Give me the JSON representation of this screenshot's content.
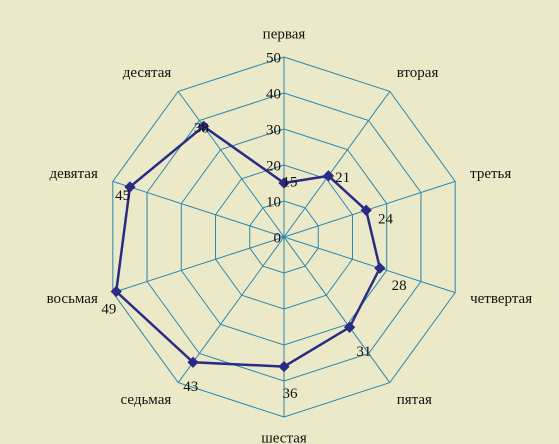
{
  "chart_data": {
    "type": "radar",
    "categories": [
      "первая",
      "вторая",
      "третья",
      "четвертая",
      "пятая",
      "шестая",
      "седьмая",
      "восьмая",
      "девятая",
      "десятая"
    ],
    "series": [
      {
        "name": null,
        "color": "#2b2b85",
        "values": [
          15,
          21,
          24,
          28,
          31,
          36,
          43,
          49,
          45,
          38
        ]
      }
    ],
    "ylim": [
      0,
      50
    ],
    "yticks": [
      0,
      10,
      20,
      30,
      40,
      50
    ],
    "grid": true,
    "grid_color": "#2a86b0"
  }
}
